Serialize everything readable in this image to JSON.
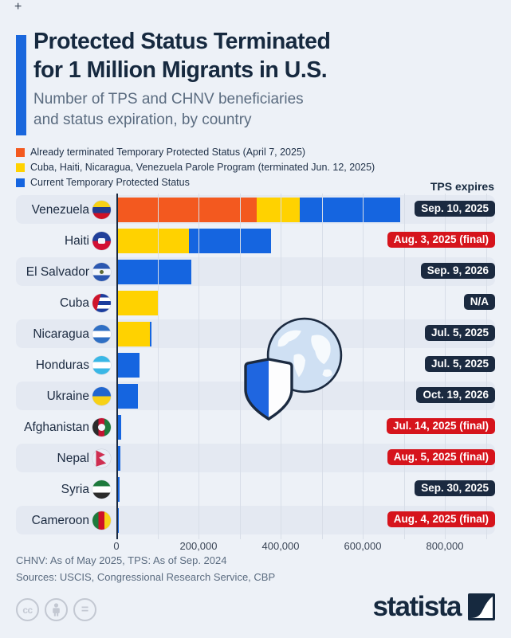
{
  "header": {
    "plus_mark": "+",
    "title_line1": "Protected Status Terminated",
    "title_line2": "for 1 Million Migrants in U.S.",
    "subtitle_line1": "Number of TPS and CHNV beneficiaries",
    "subtitle_line2": "and status expiration, by country"
  },
  "legend": {
    "items": [
      {
        "label": "Already terminated Temporary Protected Status (April 7, 2025)",
        "color": "#f3591f",
        "series_key": "already_terminated_tps"
      },
      {
        "label": "Cuba, Haiti, Nicaragua, Venezuela Parole Program (terminated Jun. 12, 2025)",
        "color": "#ffd200",
        "series_key": "chnv_parole"
      },
      {
        "label": "Current Temporary Protected Status",
        "color": "#1565e0",
        "series_key": "current_tps"
      }
    ],
    "right_header": "TPS expires"
  },
  "chart_data": {
    "type": "bar",
    "orientation": "horizontal",
    "title": "Number of TPS and CHNV beneficiaries and status expiration, by country",
    "x_axis": {
      "tick_labels": [
        "0",
        "200,000",
        "400,000",
        "600,000",
        "800,000"
      ],
      "tick_values": [
        0,
        200000,
        400000,
        600000,
        800000
      ],
      "max": 920000,
      "gridline_interval": 100000,
      "grid": true
    },
    "series_names": [
      "Already terminated Temporary Protected Status",
      "CHNV Parole Program",
      "Current Temporary Protected Status"
    ],
    "rows": [
      {
        "country": "Venezuela",
        "flag": "venezuela",
        "already_terminated_tps": 340000,
        "chnv_parole": 105000,
        "current_tps": 245000,
        "tps_expires": "Sep. 10, 2025",
        "final": false
      },
      {
        "country": "Haiti",
        "flag": "haiti",
        "already_terminated_tps": 0,
        "chnv_parole": 175000,
        "current_tps": 200000,
        "tps_expires": "Aug. 3, 2025 (final)",
        "final": true
      },
      {
        "country": "El Salvador",
        "flag": "el-salvador",
        "already_terminated_tps": 0,
        "chnv_parole": 0,
        "current_tps": 180000,
        "tps_expires": "Sep. 9, 2026",
        "final": false
      },
      {
        "country": "Cuba",
        "flag": "cuba",
        "already_terminated_tps": 0,
        "chnv_parole": 100000,
        "current_tps": 0,
        "tps_expires": "N/A",
        "final": false
      },
      {
        "country": "Nicaragua",
        "flag": "nicaragua",
        "already_terminated_tps": 0,
        "chnv_parole": 80000,
        "current_tps": 4000,
        "tps_expires": "Jul. 5, 2025",
        "final": false
      },
      {
        "country": "Honduras",
        "flag": "honduras",
        "already_terminated_tps": 0,
        "chnv_parole": 0,
        "current_tps": 55000,
        "tps_expires": "Jul. 5, 2025",
        "final": false
      },
      {
        "country": "Ukraine",
        "flag": "ukraine",
        "already_terminated_tps": 0,
        "chnv_parole": 0,
        "current_tps": 50000,
        "tps_expires": "Oct. 19, 2026",
        "final": false
      },
      {
        "country": "Afghanistan",
        "flag": "afghanistan",
        "already_terminated_tps": 0,
        "chnv_parole": 0,
        "current_tps": 10000,
        "tps_expires": "Jul. 14, 2025 (final)",
        "final": true
      },
      {
        "country": "Nepal",
        "flag": "nepal",
        "already_terminated_tps": 0,
        "chnv_parole": 0,
        "current_tps": 8000,
        "tps_expires": "Aug. 5, 2025 (final)",
        "final": true
      },
      {
        "country": "Syria",
        "flag": "syria",
        "already_terminated_tps": 0,
        "chnv_parole": 0,
        "current_tps": 5000,
        "tps_expires": "Sep. 30, 2025",
        "final": false
      },
      {
        "country": "Cameroon",
        "flag": "cameroon",
        "already_terminated_tps": 0,
        "chnv_parole": 0,
        "current_tps": 3000,
        "tps_expires": "Aug. 4, 2025 (final)",
        "final": true
      }
    ],
    "pill_colors": {
      "normal": "#1b2a40",
      "final": "#d6141c"
    }
  },
  "footer": {
    "footnote": "CHNV: As of May 2025, TPS: As of Sep. 2024",
    "sources": "Sources: USCIS, Congressional Research Service, CBP"
  },
  "branding": {
    "logo_text": "statista",
    "license_icons": [
      "cc-icon",
      "person-icon",
      "equals-icon"
    ],
    "cc_label": "cc",
    "equals_label": "="
  },
  "watermark_icons": [
    "globe-icon",
    "shield-icon"
  ],
  "colors": {
    "background": "#edf1f7",
    "row_band": "#e4e9f2",
    "accent_blue": "#1a67dd",
    "title_navy": "#16293f",
    "subtitle_gray": "#5b6c80",
    "gridline": "#d8dee8"
  }
}
